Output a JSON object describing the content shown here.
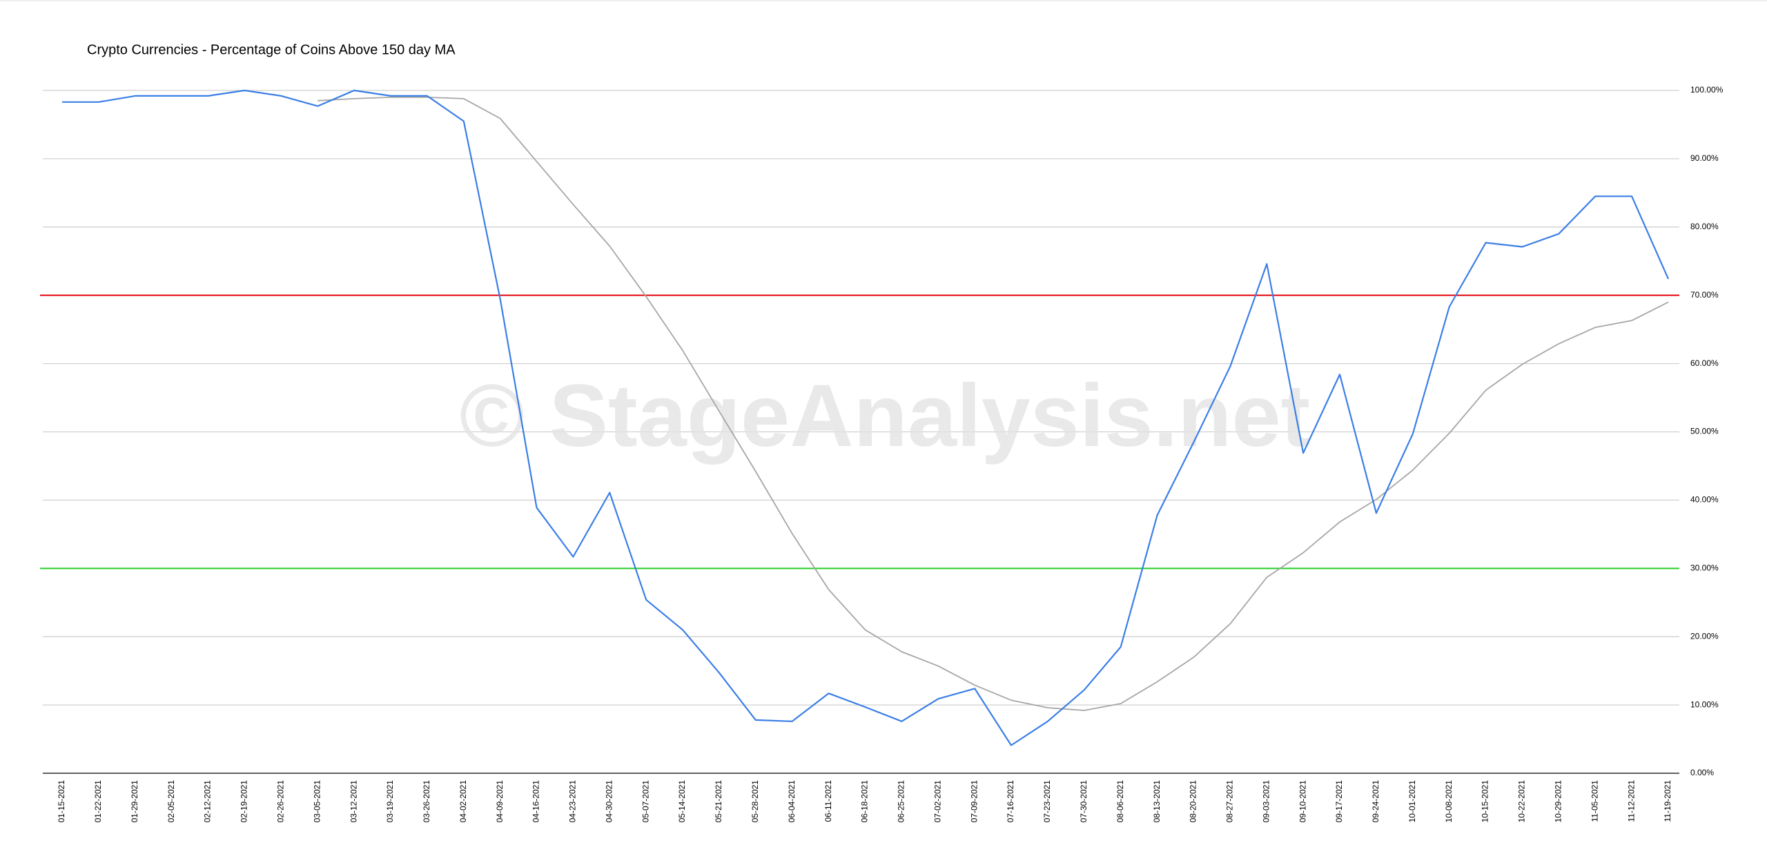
{
  "chart_data": {
    "type": "line",
    "title": "Crypto Currencies - Percentage of Coins Above 150 day MA",
    "watermark": "© StageAnalysis.net",
    "categories": [
      "01-15-2021",
      "01-22-2021",
      "01-29-2021",
      "02-05-2021",
      "02-12-2021",
      "02-19-2021",
      "02-26-2021",
      "03-05-2021",
      "03-12-2021",
      "03-19-2021",
      "03-26-2021",
      "04-02-2021",
      "04-09-2021",
      "04-16-2021",
      "04-23-2021",
      "04-30-2021",
      "05-07-2021",
      "05-14-2021",
      "05-21-2021",
      "05-28-2021",
      "06-04-2021",
      "06-11-2021",
      "06-18-2021",
      "06-25-2021",
      "07-02-2021",
      "07-09-2021",
      "07-16-2021",
      "07-23-2021",
      "07-30-2021",
      "08-06-2021",
      "08-13-2021",
      "08-20-2021",
      "08-27-2021",
      "09-03-2021",
      "09-10-2021",
      "09-17-2021",
      "09-24-2021",
      "10-01-2021",
      "10-08-2021",
      "10-15-2021",
      "10-22-2021",
      "10-29-2021",
      "11-05-2021",
      "11-12-2021",
      "11-19-2021"
    ],
    "series": [
      {
        "color": "#3a7ee6",
        "values": [
          98.3,
          98.3,
          99.2,
          99.2,
          99.2,
          100,
          99.2,
          97.7,
          100,
          99.2,
          99.2,
          95.5,
          69.5,
          38.9,
          31.7,
          41.1,
          25.4,
          21.0,
          14.7,
          7.8,
          7.6,
          11.7,
          9.7,
          7.6,
          10.9,
          12.4,
          4.1,
          7.6,
          12.2,
          18.5,
          37.8,
          48.5,
          59.6,
          74.6,
          46.9,
          58.4,
          38.1,
          49.7,
          68.3,
          77.7,
          77.1,
          79.0,
          84.5,
          84.5,
          72.4
        ]
      },
      {
        "color": "#a6a6a6",
        "values": [
          null,
          null,
          null,
          null,
          null,
          null,
          null,
          98.5,
          98.8,
          99.0,
          99.0,
          98.8,
          95.9,
          89.6,
          83.3,
          77.2,
          69.8,
          61.9,
          53.0,
          44.2,
          35.1,
          26.9,
          21.0,
          17.8,
          15.7,
          12.9,
          10.7,
          9.6,
          9.2,
          10.2,
          13.4,
          17.0,
          21.9,
          28.7,
          32.3,
          36.8,
          40.1,
          44.4,
          49.8,
          56.1,
          59.9,
          62.9,
          65.3,
          66.3,
          69.0
        ]
      }
    ],
    "reference_lines": [
      {
        "value": 70,
        "color": "#e8141c"
      },
      {
        "value": 30,
        "color": "#2ed12e"
      }
    ],
    "ylim": [
      0,
      100
    ],
    "yticks": [
      {
        "value": 0,
        "label": "0.00%"
      },
      {
        "value": 10,
        "label": "10.00%"
      },
      {
        "value": 20,
        "label": "20.00%"
      },
      {
        "value": 30,
        "label": "30.00%"
      },
      {
        "value": 40,
        "label": "40.00%"
      },
      {
        "value": 50,
        "label": "50.00%"
      },
      {
        "value": 60,
        "label": "60.00%"
      },
      {
        "value": 70,
        "label": "70.00%"
      },
      {
        "value": 80,
        "label": "80.00%"
      },
      {
        "value": 90,
        "label": "90.00%"
      },
      {
        "value": 100,
        "label": "100.00%"
      }
    ],
    "grid": true
  }
}
